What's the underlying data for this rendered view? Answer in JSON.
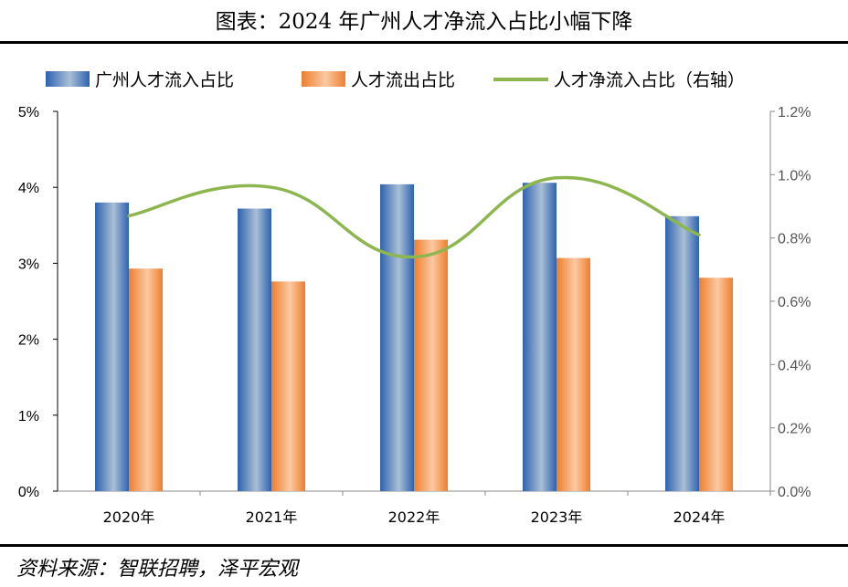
{
  "title": "图表：2024 年广州人才净流入占比小幅下降",
  "source": "资料来源：智联招聘，泽平宏观",
  "chart_data": {
    "type": "bar",
    "categories": [
      "2020年",
      "2021年",
      "2022年",
      "2023年",
      "2024年"
    ],
    "series": [
      {
        "name": "广州人才流入占比",
        "axis": "left",
        "kind": "bar",
        "values": [
          3.8,
          3.72,
          4.04,
          4.06,
          3.62
        ],
        "color": "#3D6FB8"
      },
      {
        "name": "人才流出占比",
        "axis": "left",
        "kind": "bar",
        "values": [
          2.93,
          2.76,
          3.31,
          3.07,
          2.81
        ],
        "color": "#F08B3E"
      },
      {
        "name": "人才净流入占比（右轴）",
        "axis": "right",
        "kind": "line",
        "values": [
          0.87,
          0.96,
          0.74,
          0.99,
          0.81
        ],
        "color": "#8DB650"
      }
    ],
    "y_left": {
      "min": 0,
      "max": 5,
      "ticks": [
        "0%",
        "1%",
        "2%",
        "3%",
        "4%",
        "5%"
      ]
    },
    "y_right": {
      "min": 0,
      "max": 1.2,
      "ticks": [
        "0.0%",
        "0.2%",
        "0.4%",
        "0.6%",
        "0.8%",
        "1.0%",
        "1.2%"
      ]
    },
    "legend_position": "top"
  }
}
